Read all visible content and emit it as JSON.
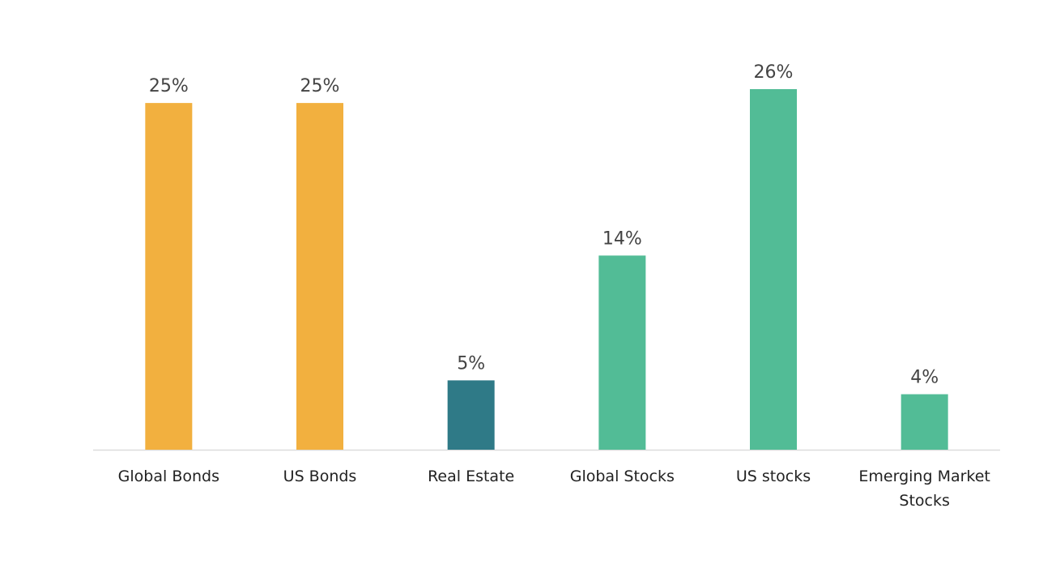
{
  "chart_data": {
    "type": "bar",
    "categories": [
      "Global Bonds",
      "US Bonds",
      "Real Estate",
      "Global Stocks",
      "US stocks",
      "Emerging Market Stocks"
    ],
    "values": [
      25,
      25,
      5,
      14,
      26,
      4
    ],
    "value_labels": [
      "25%",
      "25%",
      "5%",
      "14%",
      "26%",
      "4%"
    ],
    "colors": [
      "#f2b03f",
      "#f2b03f",
      "#2f7a87",
      "#52bc96",
      "#52bc96",
      "#52bc96"
    ]
  }
}
